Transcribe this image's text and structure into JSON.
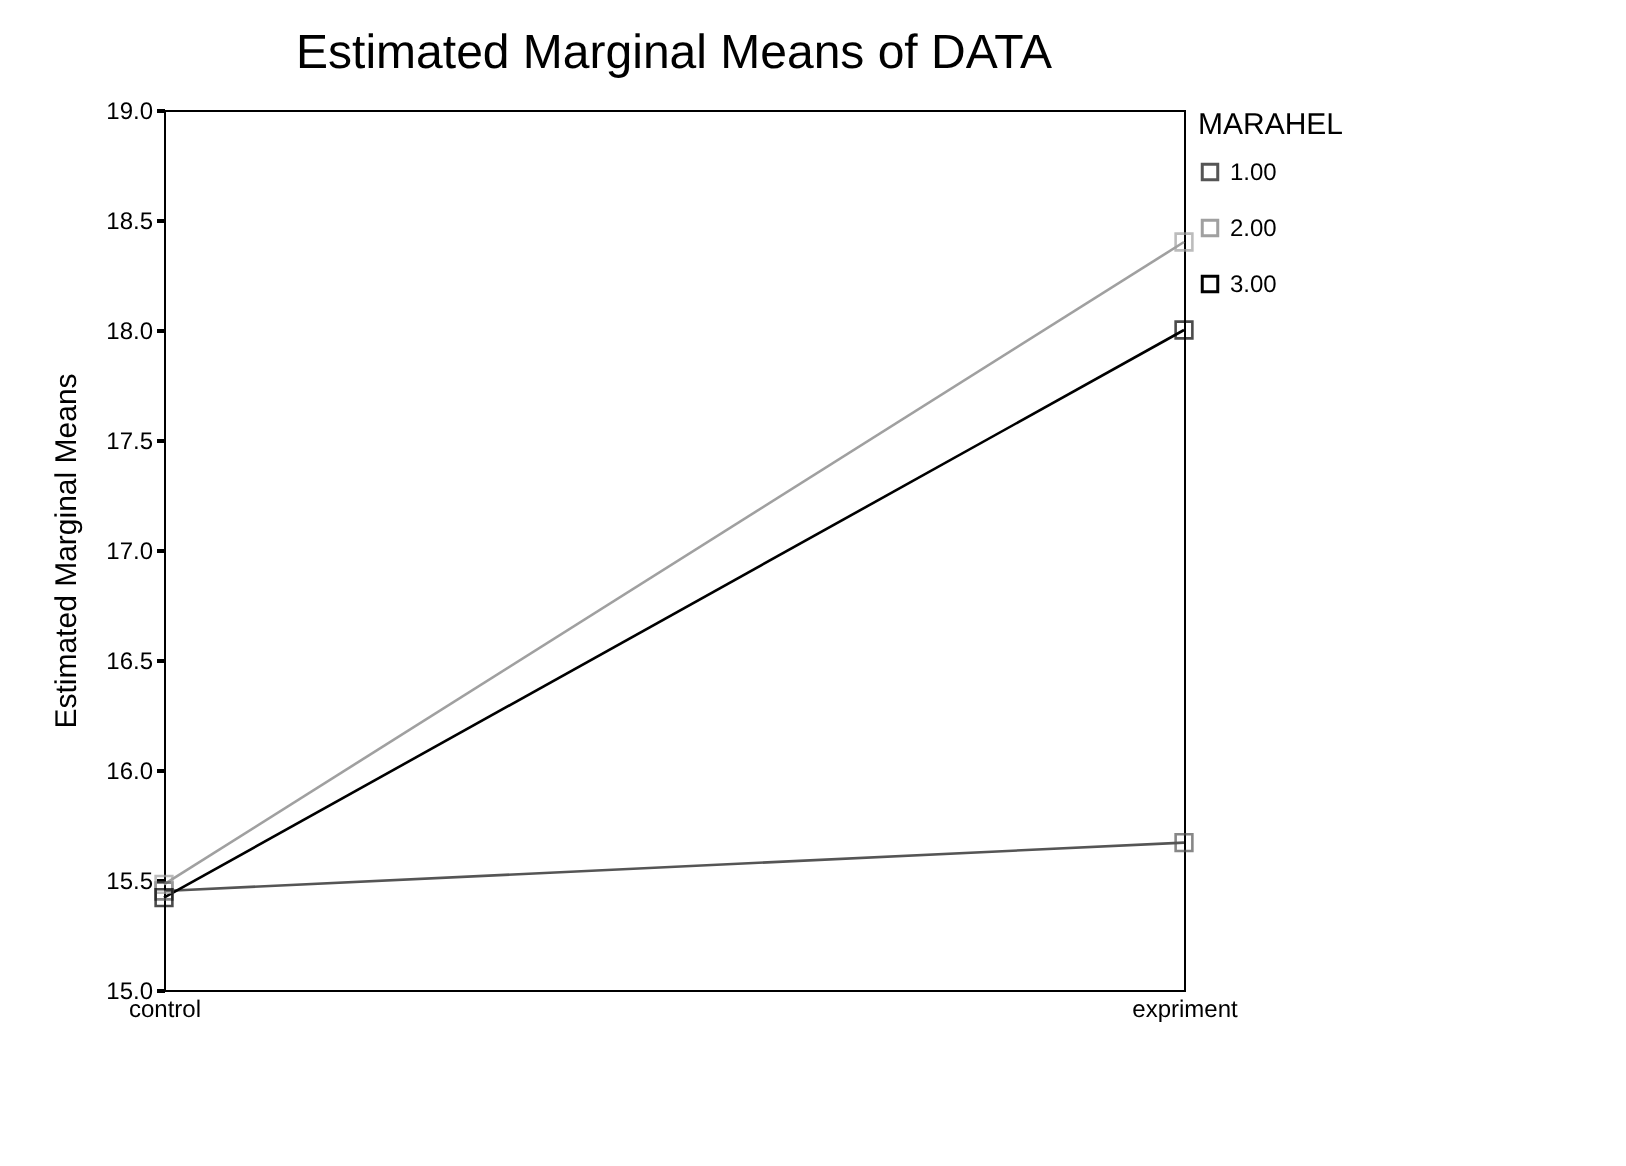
{
  "chart_data": {
    "type": "line",
    "title": "Estimated Marginal Means of DATA",
    "ylabel": "Estimated Marginal Means",
    "legend_title": "MARAHEL",
    "categories": [
      "control",
      "expriment"
    ],
    "series": [
      {
        "name": "1.00",
        "color": "#555555",
        "values": [
          15.45,
          15.67
        ]
      },
      {
        "name": "2.00",
        "color": "#a0a0a0",
        "values": [
          15.48,
          18.4
        ]
      },
      {
        "name": "3.00",
        "color": "#000000",
        "values": [
          15.42,
          18.0
        ]
      }
    ],
    "ylim": [
      15.0,
      19.0
    ],
    "yticks": [
      {
        "value": 15.0,
        "label": "15.0"
      },
      {
        "value": 15.5,
        "label": "15.5"
      },
      {
        "value": 16.0,
        "label": "16.0"
      },
      {
        "value": 16.5,
        "label": "16.5"
      },
      {
        "value": 17.0,
        "label": "17.0"
      },
      {
        "value": 17.5,
        "label": "17.5"
      },
      {
        "value": 18.0,
        "label": "18.0"
      },
      {
        "value": 18.5,
        "label": "18.5"
      },
      {
        "value": 19.0,
        "label": "19.0"
      }
    ],
    "grid": false,
    "legend": "right",
    "marker": "square",
    "line_style": "solid"
  }
}
